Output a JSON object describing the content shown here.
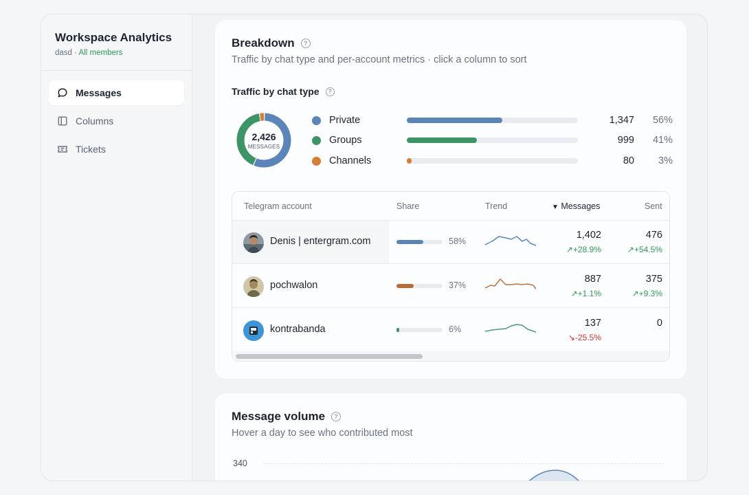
{
  "sidebar": {
    "title": "Workspace Analytics",
    "workspace": "dasd",
    "separator": "·",
    "scope": "All members",
    "items": [
      {
        "label": "Messages",
        "icon": "chat-bubble-icon",
        "active": true
      },
      {
        "label": "Columns",
        "icon": "columns-icon",
        "active": false
      },
      {
        "label": "Tickets",
        "icon": "ticket-icon",
        "active": false
      }
    ]
  },
  "breakdown": {
    "title": "Breakdown",
    "subtitle": "Traffic by chat type and per-account metrics · click a column to sort",
    "chat_type_title": "Traffic by chat type",
    "donut_total": "2,426",
    "donut_label": "MESSAGES",
    "chat_types": [
      {
        "name": "Private",
        "count": "1,347",
        "pct": "56%",
        "share": 0.56,
        "color": "#5b85b8"
      },
      {
        "name": "Groups",
        "count": "999",
        "pct": "41%",
        "share": 0.41,
        "color": "#3d9467"
      },
      {
        "name": "Channels",
        "count": "80",
        "pct": "3%",
        "share": 0.03,
        "color": "#d37f35"
      }
    ],
    "table": {
      "columns": [
        "Telegram account",
        "Share",
        "Trend",
        "Messages",
        "Sent"
      ],
      "sort_indicator": "▼",
      "rows": [
        {
          "account": "Denis | entergram.com",
          "share_pct": "58%",
          "share": 0.58,
          "share_color": "#5b85b8",
          "messages": "1,402",
          "messages_delta": "+28.9%",
          "messages_dir": "up",
          "sent": "476",
          "sent_delta": "+54.5%",
          "sent_dir": "up",
          "trend_color": "#5b85b8"
        },
        {
          "account": "pochwalon",
          "share_pct": "37%",
          "share": 0.37,
          "share_color": "#b86a3a",
          "messages": "887",
          "messages_delta": "+1.1%",
          "messages_dir": "up",
          "sent": "375",
          "sent_delta": "+9.3%",
          "sent_dir": "up",
          "trend_color": "#c0723e"
        },
        {
          "account": "kontrabanda",
          "share_pct": "6%",
          "share": 0.06,
          "share_color": "#3d9467",
          "messages": "137",
          "messages_delta": "-25.5%",
          "messages_dir": "down",
          "sent": "0",
          "sent_delta": "",
          "sent_dir": "",
          "trend_color": "#4a9a7a"
        }
      ]
    }
  },
  "volume": {
    "title": "Message volume",
    "subtitle": "Hover a day to see who contributed most",
    "y_tick": "340"
  }
}
